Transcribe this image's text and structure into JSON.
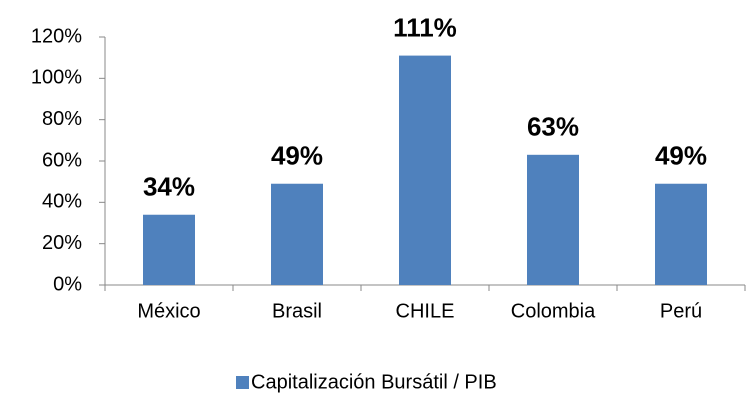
{
  "chart_data": {
    "type": "bar",
    "categories": [
      "México",
      "Brasil",
      "CHILE",
      "Colombia",
      "Perú"
    ],
    "series": [
      {
        "name": "Capitalización Bursátil / PIB",
        "color": "#4f81bd",
        "values": [
          34,
          49,
          111,
          63,
          49
        ],
        "value_labels": [
          "34%",
          "49%",
          "111%",
          "63%",
          "49%"
        ]
      }
    ],
    "ylim": [
      0,
      120
    ],
    "yticks": [
      {
        "value": 0,
        "label": "0%"
      },
      {
        "value": 20,
        "label": "20%"
      },
      {
        "value": 40,
        "label": "40%"
      },
      {
        "value": 60,
        "label": "60%"
      },
      {
        "value": 80,
        "label": "80%"
      },
      {
        "value": 100,
        "label": "100%"
      },
      {
        "value": 120,
        "label": "120%"
      }
    ],
    "grid": false,
    "legend": "bottom"
  }
}
